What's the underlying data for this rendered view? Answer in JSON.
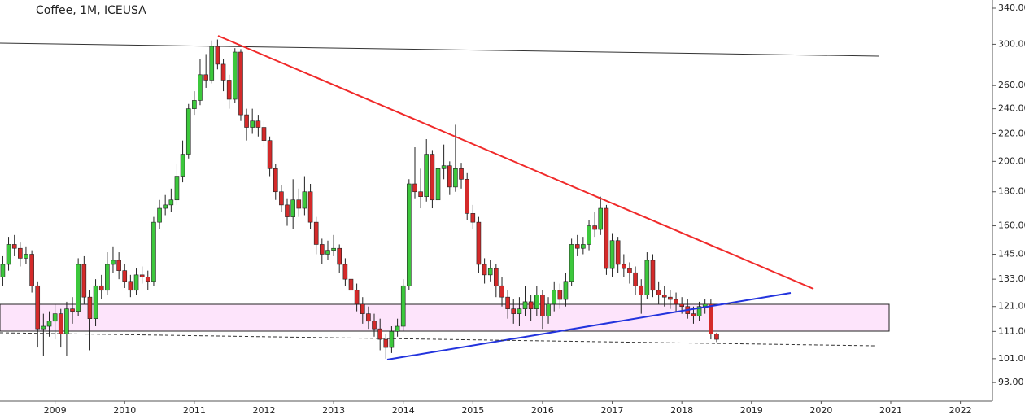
{
  "chart_data": {
    "type": "candlestick",
    "title": "Coffee, 1M, ICEUSA",
    "log_scale": true,
    "grid": false,
    "up_color": "#3cc83c",
    "down_color": "#d42a2a",
    "xlim": [
      2008.21,
      2022.46
    ],
    "xticks": [
      2009,
      2010,
      2011,
      2012,
      2013,
      2014,
      2015,
      2016,
      2017,
      2018,
      2019,
      2020,
      2021,
      2022
    ],
    "ylim": [
      87.2,
      349.7
    ],
    "yticks": [
      {
        "value": 93,
        "label": "93.00"
      },
      {
        "value": 101,
        "label": "101.00"
      },
      {
        "value": 111,
        "label": "111.00"
      },
      {
        "value": 121,
        "label": "121.00"
      },
      {
        "value": 133,
        "label": "133.00"
      },
      {
        "value": 145,
        "label": "145.00"
      },
      {
        "value": 160,
        "label": "160.00"
      },
      {
        "value": 180,
        "label": "180.00"
      },
      {
        "value": 200,
        "label": "200.00"
      },
      {
        "value": 220,
        "label": "220.00"
      },
      {
        "value": 240,
        "label": "240.00"
      },
      {
        "value": 260,
        "label": "260.00"
      },
      {
        "value": 300,
        "label": "300.00"
      },
      {
        "value": 340,
        "label": "340.00"
      }
    ],
    "x": [
      2008.25,
      2008.333,
      2008.417,
      2008.5,
      2008.583,
      2008.667,
      2008.75,
      2008.833,
      2008.917,
      2009,
      2009.083,
      2009.167,
      2009.25,
      2009.333,
      2009.417,
      2009.5,
      2009.583,
      2009.667,
      2009.75,
      2009.833,
      2009.917,
      2010,
      2010.083,
      2010.167,
      2010.25,
      2010.333,
      2010.417,
      2010.5,
      2010.583,
      2010.667,
      2010.75,
      2010.833,
      2010.917,
      2011,
      2011.083,
      2011.167,
      2011.25,
      2011.333,
      2011.417,
      2011.5,
      2011.583,
      2011.667,
      2011.75,
      2011.833,
      2011.917,
      2012,
      2012.083,
      2012.167,
      2012.25,
      2012.333,
      2012.417,
      2012.5,
      2012.583,
      2012.667,
      2012.75,
      2012.833,
      2012.917,
      2013,
      2013.083,
      2013.167,
      2013.25,
      2013.333,
      2013.417,
      2013.5,
      2013.583,
      2013.667,
      2013.75,
      2013.833,
      2013.917,
      2014,
      2014.083,
      2014.167,
      2014.25,
      2014.333,
      2014.417,
      2014.5,
      2014.583,
      2014.667,
      2014.75,
      2014.833,
      2014.917,
      2015,
      2015.083,
      2015.167,
      2015.25,
      2015.333,
      2015.417,
      2015.5,
      2015.583,
      2015.667,
      2015.75,
      2015.833,
      2015.917,
      2016,
      2016.083,
      2016.167,
      2016.25,
      2016.333,
      2016.417,
      2016.5,
      2016.583,
      2016.667,
      2016.75,
      2016.833,
      2016.917,
      2017,
      2017.083,
      2017.167,
      2017.25,
      2017.333,
      2017.417,
      2017.5,
      2017.583,
      2017.667,
      2017.75,
      2017.833,
      2017.917,
      2018,
      2018.083,
      2018.167,
      2018.25,
      2018.333,
      2018.417,
      2018.5
    ],
    "open": [
      134,
      140,
      150,
      148,
      143,
      145,
      130,
      112,
      113,
      115,
      118,
      110,
      120,
      119,
      140,
      125,
      116,
      130,
      128,
      140,
      142,
      137,
      132,
      128,
      135,
      134,
      132,
      162,
      170,
      172,
      175,
      190,
      205,
      240,
      247,
      270,
      265,
      298,
      280,
      265,
      248,
      292,
      235,
      225,
      230,
      225,
      215,
      195,
      180,
      172,
      165,
      175,
      170,
      180,
      162,
      150,
      145,
      147,
      148,
      140,
      133,
      128,
      122,
      118,
      115,
      112,
      108,
      105,
      111,
      113,
      130,
      185,
      180,
      177,
      205,
      175,
      195,
      197,
      183,
      195,
      188,
      167,
      162,
      140,
      135,
      138,
      130,
      125,
      120,
      118,
      120,
      123,
      120,
      126,
      117,
      122,
      128,
      124,
      132,
      150,
      148,
      150,
      160,
      158,
      170,
      138,
      152,
      140,
      138,
      136,
      130,
      126,
      142,
      128,
      126,
      125,
      124,
      122,
      121,
      118,
      117,
      121,
      122,
      110
    ],
    "high": [
      144,
      154,
      155,
      151,
      149,
      147,
      132,
      118,
      119,
      122,
      120,
      123,
      125,
      143,
      144,
      128,
      133,
      135,
      146,
      149,
      146,
      140,
      135,
      138,
      139,
      137,
      165,
      175,
      178,
      182,
      198,
      215,
      244,
      255,
      285,
      290,
      304,
      305,
      285,
      270,
      296,
      295,
      240,
      240,
      235,
      230,
      218,
      198,
      184,
      176,
      188,
      182,
      190,
      185,
      165,
      153,
      152,
      155,
      150,
      143,
      138,
      131,
      125,
      121,
      118,
      116,
      110,
      113,
      116,
      133,
      188,
      210,
      195,
      216,
      208,
      200,
      212,
      200,
      227,
      199,
      192,
      172,
      165,
      143,
      142,
      140,
      134,
      128,
      124,
      125,
      130,
      126,
      130,
      128,
      125,
      132,
      131,
      136,
      153,
      155,
      154,
      163,
      168,
      177,
      172,
      156,
      154,
      145,
      141,
      139,
      133,
      146,
      145,
      132,
      130,
      128,
      127,
      125,
      124,
      121,
      123,
      124,
      124,
      110.5
    ],
    "low": [
      130,
      137,
      144,
      139,
      140,
      127,
      105,
      102,
      109,
      108,
      105,
      102,
      114,
      117,
      122,
      104,
      113,
      124,
      126,
      136,
      133,
      129,
      125,
      126,
      131,
      128,
      130,
      158,
      166,
      168,
      172,
      186,
      202,
      235,
      243,
      258,
      262,
      275,
      255,
      240,
      245,
      230,
      215,
      220,
      218,
      210,
      190,
      175,
      168,
      160,
      158,
      165,
      166,
      158,
      145,
      140,
      142,
      144,
      136,
      130,
      125,
      119,
      114,
      112,
      109,
      104,
      101,
      103,
      109,
      111,
      128,
      176,
      170,
      174,
      170,
      165,
      188,
      178,
      180,
      182,
      163,
      158,
      136,
      131,
      132,
      125,
      121,
      116,
      114,
      113,
      117,
      115,
      117,
      112,
      114,
      119,
      120,
      121,
      130,
      144,
      145,
      147,
      154,
      155,
      135,
      134,
      136,
      134,
      131,
      126,
      118,
      124,
      125,
      122,
      121,
      120,
      119,
      118,
      116,
      114,
      115,
      118,
      108,
      107
    ],
    "close": [
      140,
      150,
      148,
      143,
      145,
      130,
      112,
      113,
      115,
      118,
      110,
      120,
      119,
      140,
      125,
      116,
      130,
      128,
      140,
      142,
      137,
      132,
      128,
      135,
      134,
      132,
      162,
      170,
      172,
      175,
      190,
      205,
      240,
      247,
      270,
      265,
      298,
      280,
      265,
      248,
      292,
      235,
      225,
      230,
      225,
      215,
      195,
      180,
      172,
      165,
      175,
      170,
      180,
      162,
      150,
      145,
      147,
      148,
      140,
      133,
      128,
      122,
      118,
      115,
      112,
      108,
      105,
      111,
      113,
      130,
      185,
      180,
      177,
      205,
      175,
      195,
      197,
      183,
      195,
      188,
      167,
      162,
      140,
      135,
      138,
      130,
      125,
      120,
      118,
      120,
      123,
      120,
      126,
      117,
      122,
      128,
      124,
      132,
      150,
      148,
      150,
      160,
      158,
      170,
      138,
      152,
      140,
      138,
      136,
      130,
      126,
      142,
      128,
      126,
      125,
      124,
      122,
      121,
      118,
      117,
      121,
      122,
      110,
      108
    ]
  }
}
